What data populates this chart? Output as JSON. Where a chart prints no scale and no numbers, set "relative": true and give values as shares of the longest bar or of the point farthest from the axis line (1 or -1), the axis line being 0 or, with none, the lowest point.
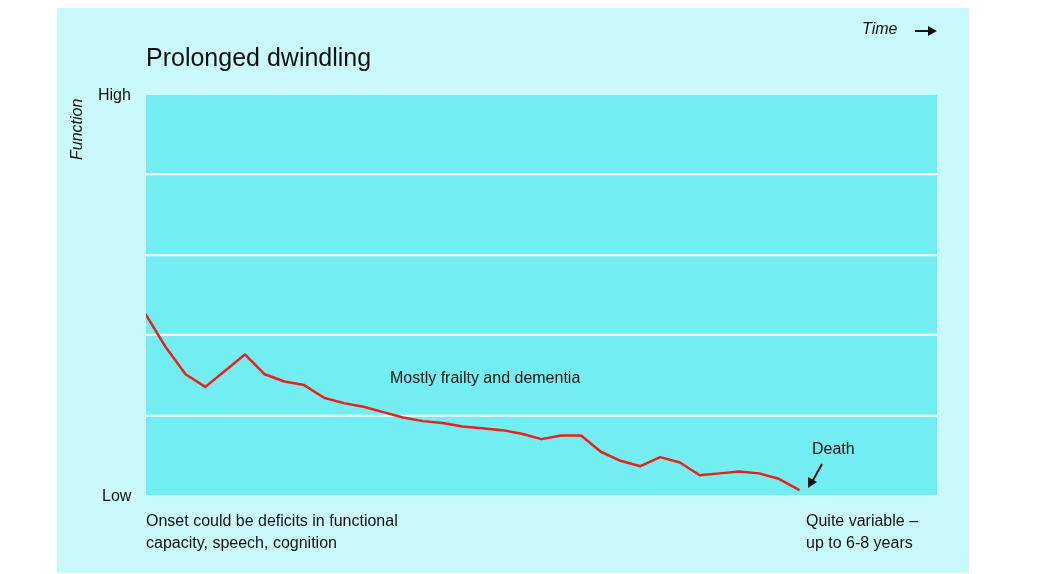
{
  "chart_data": {
    "type": "line",
    "title": "Prolonged dwindling",
    "relative": true,
    "categories": [
      null,
      null,
      null,
      null,
      null,
      null,
      null,
      null,
      null,
      null,
      null,
      null,
      null,
      null,
      null,
      null,
      null,
      null,
      null,
      null,
      null,
      null,
      null,
      null,
      null,
      null,
      null,
      null,
      null,
      null,
      null,
      null,
      null,
      null,
      null,
      null,
      null,
      null,
      null,
      null,
      null
    ],
    "series": [
      {
        "color": "#e8211b",
        "values": [
          1,
          0.82,
          0.67,
          0.6,
          0.69,
          0.78,
          0.67,
          0.63,
          0.61,
          0.54,
          0.51,
          0.49,
          0.46,
          0.43,
          0.41,
          0.4,
          0.38,
          0.37,
          0.36,
          0.34,
          0.31,
          0.33,
          0.33,
          0.24,
          0.19,
          0.16,
          0.21,
          0.18,
          0.11,
          0.12,
          0.13,
          0.12,
          0.09,
          0.03,
          null,
          null,
          null,
          null,
          null,
          null,
          null
        ]
      }
    ],
    "ref_lines": [
      {
        "axis": "y",
        "value": 0.44,
        "color": "#ffffff"
      },
      {
        "axis": "y",
        "value": 0.89,
        "color": "#ffffff"
      },
      {
        "axis": "y",
        "value": 1.33,
        "color": "#ffffff"
      },
      {
        "axis": "y",
        "value": 1.78,
        "color": "#ffffff"
      }
    ],
    "legend": false,
    "marker": "none",
    "line_style": "solid",
    "annotations": [
      "Mostly frailty and dementia",
      "Death",
      "Onset could be deficits in functional capacity, speech, cognition",
      "Quite variable – up to 6-8 years",
      "High",
      "Low",
      "Time",
      "Function"
    ]
  }
}
